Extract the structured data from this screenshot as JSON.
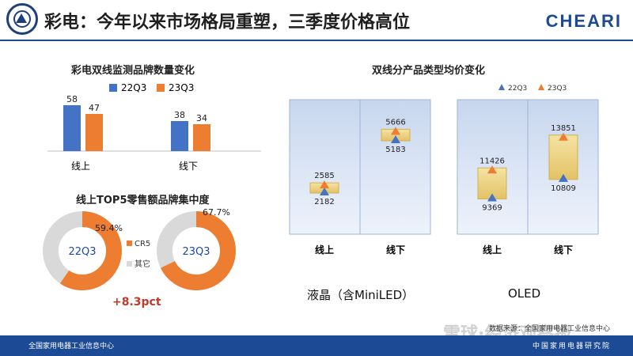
{
  "header": {
    "title": "彩电：今年以来市场格局重塑，三季度价格高位",
    "brand_right": "CHEARI"
  },
  "colors": {
    "primary": "#1c4a94",
    "series_22q3": "#4472c4",
    "series_23q3": "#ed7d31",
    "donut_gray": "#d9d9d9"
  },
  "chart_data": [
    {
      "type": "bar",
      "title": "彩电双线监测品牌数量变化",
      "categories": [
        "线上",
        "线下"
      ],
      "series": [
        {
          "name": "22Q3",
          "values": [
            58,
            38
          ]
        },
        {
          "name": "23Q3",
          "values": [
            47,
            34
          ]
        }
      ],
      "ylim": [
        0,
        70
      ]
    },
    {
      "type": "pie",
      "title": "线上TOP5零售额品牌集中度",
      "charts": [
        {
          "center_label": "22Q3",
          "value_label": "59.4%",
          "value": 59.4
        },
        {
          "center_label": "23Q3",
          "value_label": "67.7%",
          "value": 67.7
        }
      ],
      "legend": [
        "CR5",
        "其它"
      ],
      "annotation": "+8.3pct"
    },
    {
      "type": "scatter",
      "title": "双线分产品类型均价变化",
      "legend": [
        "22Q3",
        "23Q3"
      ],
      "panels": [
        {
          "label": "液晶（含MiniLED）",
          "categories": [
            "线上",
            "线下"
          ],
          "series": [
            {
              "name": "22Q3",
              "values": [
                2182,
                5183
              ]
            },
            {
              "name": "23Q3",
              "values": [
                2585,
                5666
              ]
            }
          ],
          "ylim": [
            0,
            7000
          ]
        },
        {
          "label": "OLED",
          "categories": [
            "线上",
            "线下"
          ],
          "series": [
            {
              "name": "22Q3",
              "values": [
                9369,
                10809
              ]
            },
            {
              "name": "23Q3",
              "values": [
                11426,
                13851
              ]
            }
          ],
          "ylim": [
            7000,
            16000
          ]
        }
      ]
    }
  ],
  "source_text": "数据来源：全国家用电器工业信息中心",
  "watermark_text": "雪球·经济观察报",
  "footer": {
    "left": "全国家用电器工业信息中心",
    "right": "中国家用电器研究院"
  }
}
